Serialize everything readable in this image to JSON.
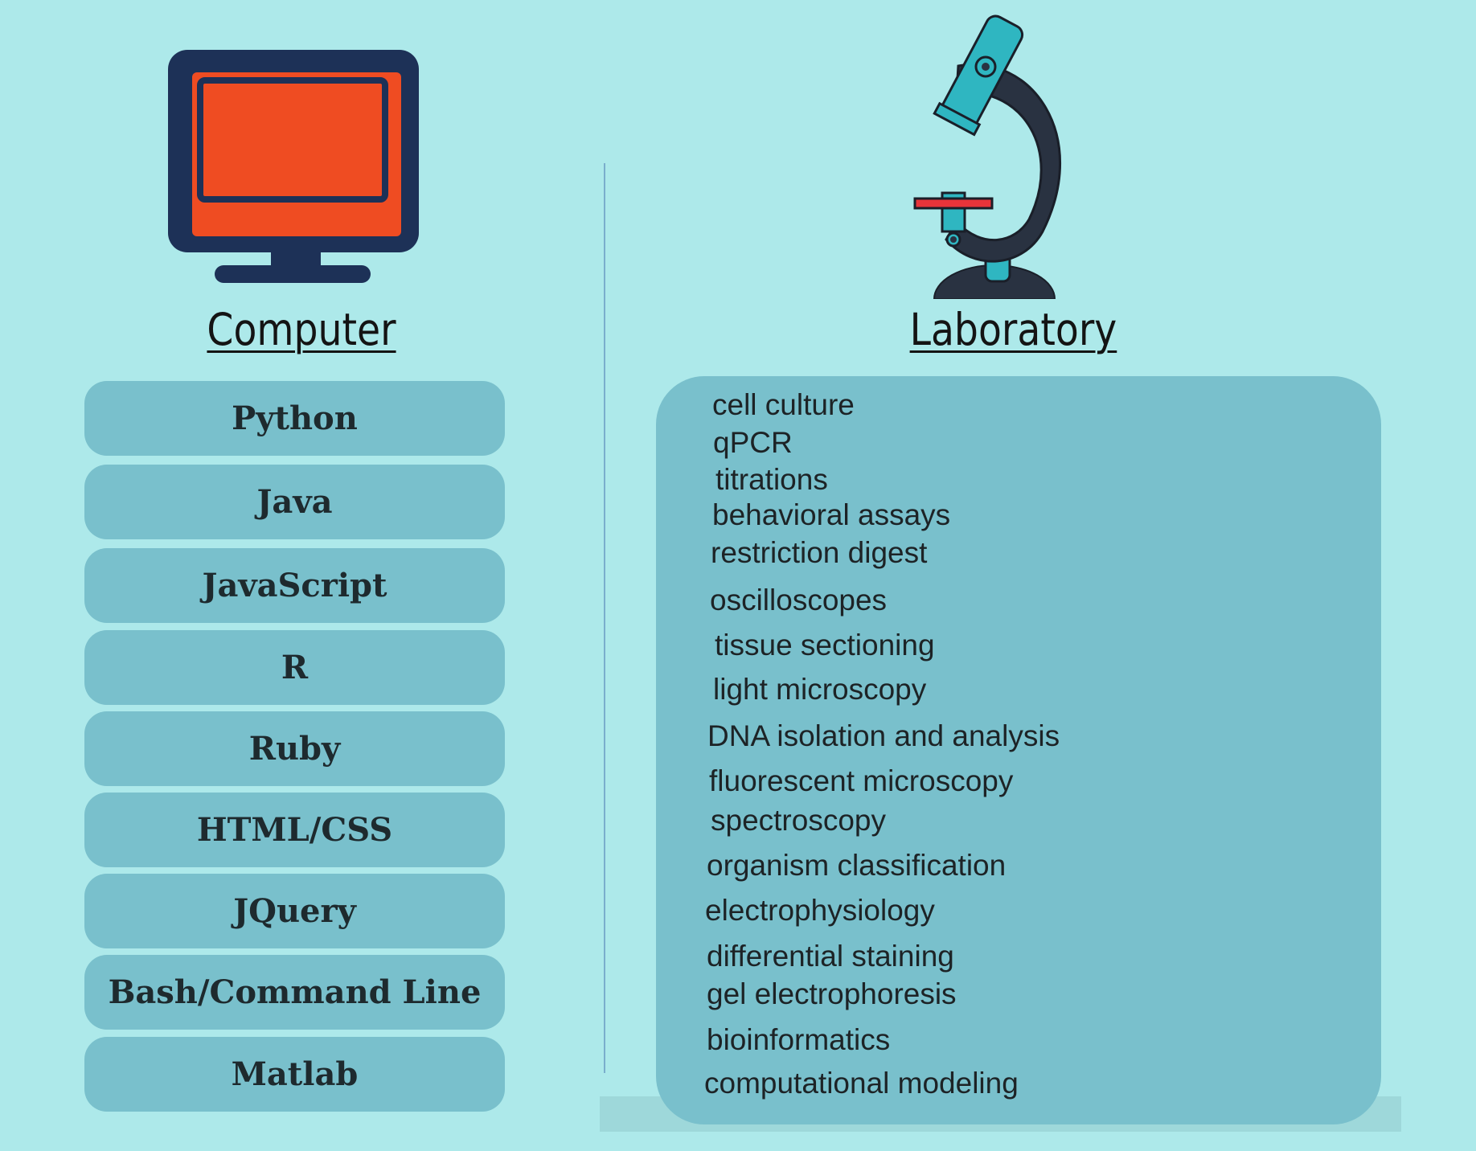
{
  "computer": {
    "heading": "Computer",
    "icon": "computer-monitor-icon",
    "skills": [
      "Python",
      "Java",
      "JavaScript",
      "R",
      "Ruby",
      "HTML/CSS",
      "JQuery",
      "Bash/Command Line",
      "Matlab"
    ]
  },
  "laboratory": {
    "heading": "Laboratory",
    "icon": "microscope-icon",
    "skills": [
      "cell culture",
      "qPCR",
      "titrations",
      "behavioral assays",
      "restriction digest",
      "oscilloscopes",
      "tissue sectioning",
      "light microscopy",
      "DNA isolation and analysis",
      "fluorescent microscopy",
      "spectroscopy",
      "organism classification",
      "electrophysiology",
      "differential staining",
      "gel electrophoresis",
      "bioinformatics",
      "computational modeling"
    ]
  },
  "colors": {
    "background": "#ade9ea",
    "box": "#79c0cc",
    "monitor_frame": "#1d3157",
    "monitor_screen": "#ef4c22",
    "microscope_arm": "#293241",
    "microscope_accent": "#2fb6c1",
    "microscope_stage": "#e8343a"
  }
}
